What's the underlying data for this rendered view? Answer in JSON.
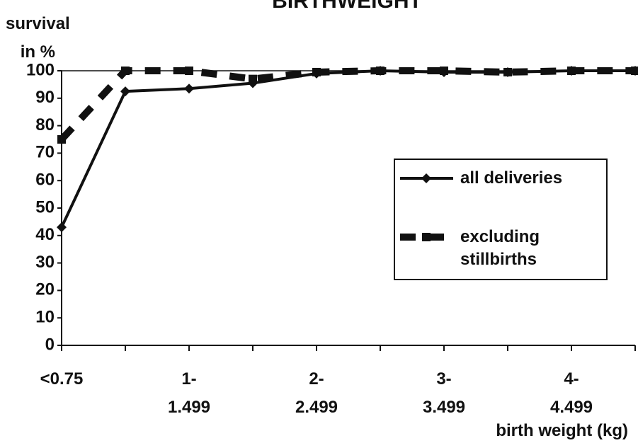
{
  "chart_data": {
    "type": "line",
    "title": "BIRTHWEIGHT",
    "y_label": "survival\nin %",
    "x_label": "birth weight (kg)",
    "categories": [
      "<0.75",
      null,
      "1-\n1.499",
      null,
      "2-\n2.499",
      null,
      "3-\n3.499",
      null,
      "4-\n4.499",
      null
    ],
    "series": [
      {
        "name": "all deliveries",
        "color": "#111111",
        "marker": "diamond",
        "dash": false,
        "values": [
          43,
          92.5,
          93.5,
          95.5,
          99,
          100,
          99.5,
          99.5,
          100,
          100
        ]
      },
      {
        "name": "excluding\nstillbirths",
        "color": "#111111",
        "marker": "square",
        "dash": true,
        "values": [
          75,
          100,
          100,
          97,
          99.5,
          100,
          100,
          99.5,
          100,
          100
        ]
      }
    ],
    "ylim": [
      0,
      100
    ],
    "yticks": [
      0,
      10,
      20,
      30,
      40,
      50,
      60,
      70,
      80,
      90,
      100
    ]
  }
}
